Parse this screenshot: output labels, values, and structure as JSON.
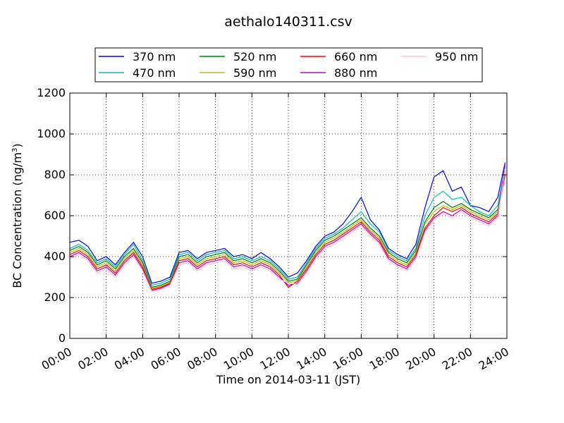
{
  "chart_data": {
    "type": "line",
    "title": "aethalo140311.csv",
    "xlabel": "Time on 2014-03-11 (JST)",
    "ylabel": "BC Concentration (ng/m",
    "ylabel_sup": "3",
    "ylabel_end": ")",
    "xlim": [
      0,
      24
    ],
    "ylim": [
      0,
      1200
    ],
    "grid": true,
    "legend_placement": "top-center",
    "x_ticks": [
      0,
      2,
      4,
      6,
      8,
      10,
      12,
      14,
      16,
      18,
      20,
      22,
      24
    ],
    "x_tick_labels": [
      "00:00",
      "02:00",
      "04:00",
      "06:00",
      "08:00",
      "10:00",
      "12:00",
      "14:00",
      "16:00",
      "18:00",
      "20:00",
      "22:00",
      "24:00"
    ],
    "y_ticks": [
      0,
      200,
      400,
      600,
      800,
      1000,
      1200
    ],
    "y_tick_labels": [
      "0",
      "200",
      "400",
      "600",
      "800",
      "1000",
      "1200"
    ],
    "x_hours": [
      0,
      0.5,
      1,
      1.5,
      2,
      2.5,
      3,
      3.5,
      4,
      4.5,
      5,
      5.5,
      6,
      6.5,
      7,
      7.5,
      8,
      8.5,
      9,
      9.5,
      10,
      10.5,
      11,
      11.5,
      12,
      12.5,
      13,
      13.5,
      14,
      14.5,
      15,
      15.5,
      16,
      16.5,
      17,
      17.5,
      18,
      18.5,
      19,
      19.5,
      20,
      20.5,
      21,
      21.5,
      22,
      22.5,
      23,
      23.5,
      23.9
    ],
    "series": [
      {
        "name": "370 nm",
        "color": "#0000ff",
        "values": [
          470,
          480,
          450,
          380,
          400,
          360,
          420,
          470,
          400,
          270,
          280,
          300,
          420,
          430,
          390,
          420,
          430,
          440,
          400,
          410,
          390,
          420,
          390,
          350,
          300,
          320,
          380,
          450,
          500,
          520,
          560,
          620,
          690,
          580,
          530,
          440,
          410,
          390,
          460,
          640,
          790,
          820,
          720,
          740,
          650,
          640,
          620,
          690,
          860
        ]
      },
      {
        "name": "470 nm",
        "color": "#00bfbf",
        "values": [
          440,
          460,
          430,
          370,
          390,
          350,
          410,
          460,
          380,
          260,
          270,
          290,
          410,
          420,
          380,
          410,
          420,
          430,
          390,
          400,
          380,
          400,
          380,
          340,
          290,
          300,
          370,
          440,
          490,
          510,
          540,
          580,
          620,
          560,
          520,
          430,
          400,
          380,
          440,
          600,
          690,
          720,
          680,
          690,
          650,
          620,
          600,
          650,
          840
        ]
      },
      {
        "name": "520 nm",
        "color": "#008000",
        "values": [
          430,
          450,
          420,
          360,
          380,
          340,
          400,
          440,
          370,
          250,
          260,
          280,
          400,
          410,
          370,
          400,
          410,
          420,
          380,
          390,
          370,
          390,
          370,
          330,
          280,
          290,
          360,
          430,
          480,
          500,
          530,
          560,
          590,
          540,
          500,
          420,
          390,
          370,
          430,
          570,
          640,
          670,
          640,
          660,
          630,
          610,
          590,
          630,
          820
        ]
      },
      {
        "name": "590 nm",
        "color": "#bfbf00",
        "values": [
          420,
          440,
          410,
          350,
          370,
          330,
          390,
          430,
          360,
          245,
          255,
          275,
          390,
          400,
          360,
          390,
          400,
          410,
          370,
          380,
          360,
          380,
          360,
          320,
          270,
          285,
          350,
          420,
          470,
          490,
          520,
          550,
          580,
          530,
          490,
          410,
          380,
          360,
          420,
          560,
          620,
          650,
          630,
          650,
          620,
          600,
          580,
          620,
          810
        ]
      },
      {
        "name": "660 nm",
        "color": "#ff0000",
        "values": [
          410,
          430,
          400,
          340,
          360,
          320,
          380,
          420,
          350,
          240,
          250,
          270,
          380,
          390,
          350,
          380,
          390,
          400,
          360,
          370,
          350,
          370,
          350,
          310,
          250,
          280,
          340,
          410,
          460,
          480,
          510,
          540,
          570,
          520,
          480,
          400,
          370,
          350,
          410,
          540,
          600,
          640,
          620,
          640,
          610,
          590,
          570,
          610,
          800
        ]
      },
      {
        "name": "880 nm",
        "color": "#bf00bf",
        "values": [
          400,
          420,
          390,
          330,
          350,
          310,
          370,
          410,
          340,
          235,
          245,
          265,
          370,
          380,
          340,
          370,
          380,
          390,
          350,
          360,
          340,
          360,
          340,
          300,
          260,
          270,
          330,
          400,
          450,
          470,
          500,
          530,
          560,
          510,
          470,
          390,
          360,
          340,
          400,
          530,
          590,
          620,
          600,
          630,
          600,
          580,
          560,
          600,
          850
        ]
      },
      {
        "name": "950 nm",
        "color": "#ffc0cb",
        "values": [
          390,
          410,
          380,
          320,
          340,
          300,
          360,
          400,
          330,
          230,
          240,
          260,
          360,
          370,
          330,
          360,
          370,
          380,
          340,
          350,
          330,
          350,
          330,
          290,
          270,
          265,
          320,
          390,
          440,
          460,
          490,
          520,
          550,
          500,
          460,
          380,
          350,
          330,
          390,
          520,
          580,
          610,
          590,
          620,
          590,
          570,
          550,
          590,
          830
        ]
      }
    ]
  }
}
